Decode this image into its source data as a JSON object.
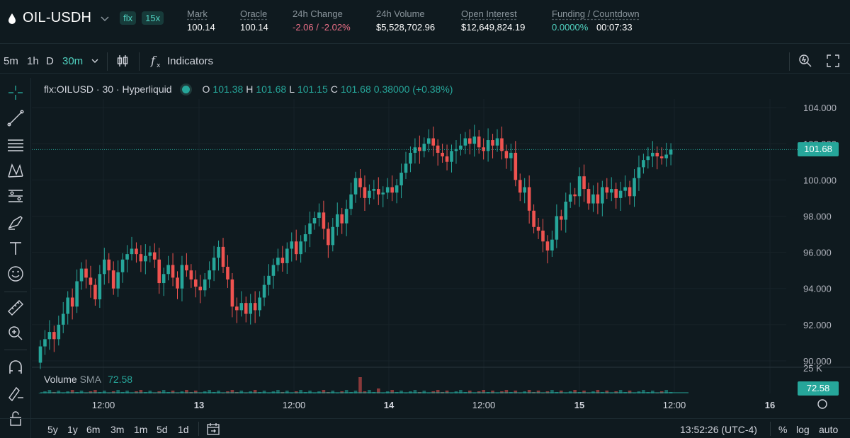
{
  "header": {
    "pair": "OIL-USDH",
    "tags": [
      "flx",
      "15x"
    ],
    "stats": [
      {
        "label": "Mark",
        "value": "100.14",
        "tone": "white"
      },
      {
        "label": "Oracle",
        "value": "100.14",
        "tone": "white"
      },
      {
        "label": "24h Change",
        "value": "-2.06 / -2.02%",
        "tone": "red"
      },
      {
        "label": "24h Volume",
        "value": "$5,528,702.96",
        "tone": "white"
      },
      {
        "label": "Open Interest",
        "value": "$12,649,824.19",
        "tone": "white"
      },
      {
        "label": "Funding / Countdown",
        "value": "0.0000%",
        "value2": "00:07:33",
        "tone": "green"
      }
    ]
  },
  "toolbar": {
    "timeframes": [
      "5m",
      "1h",
      "D",
      "30m"
    ],
    "active_timeframe": "30m",
    "indicators_label": "Indicators"
  },
  "legend": {
    "symbol": "flx:OILUSD · 30 · Hyperliquid",
    "o_label": "O",
    "o": "101.38",
    "h_label": "H",
    "h": "101.68",
    "l_label": "L",
    "l": "101.15",
    "c_label": "C",
    "c": "101.68",
    "change": "0.38000 (+0.38%)"
  },
  "volume_legend": {
    "label": "Volume",
    "sma_label": "SMA",
    "sma": "72.58",
    "tag": "72.58"
  },
  "last_price_tag": "101.68",
  "price_axis": [
    "104.000",
    "102.000",
    "100.000",
    "98.000",
    "96.000",
    "94.000",
    "92.000",
    "90.000"
  ],
  "volume_axis_label": "25 K",
  "time_axis": [
    "12:00",
    "13",
    "12:00",
    "14",
    "12:00",
    "15",
    "12:00",
    "16"
  ],
  "bottombar": {
    "ranges": [
      "5y",
      "1y",
      "6m",
      "3m",
      "1m",
      "5d",
      "1d"
    ],
    "clock": "13:52:26 (UTC-4)",
    "percent": "%",
    "log": "log",
    "auto": "auto"
  },
  "colors": {
    "up": "#26a69a",
    "down": "#ef5350",
    "accent": "#50d2c1",
    "bg": "#0f1a1f"
  },
  "chart_data": {
    "type": "candlestick",
    "symbol": "flx:OILUSD",
    "interval": "30",
    "ylim": [
      90,
      104
    ],
    "closes": [
      90.8,
      91.2,
      91.6,
      91.2,
      92.0,
      92.6,
      93.5,
      93.0,
      94.4,
      95.1,
      94.6,
      94.2,
      93.4,
      94.8,
      95.6,
      95.0,
      94.0,
      94.9,
      95.6,
      95.9,
      96.2,
      95.9,
      95.5,
      95.8,
      96.0,
      95.6,
      94.3,
      94.8,
      95.3,
      94.6,
      94.0,
      95.3,
      95.0,
      94.5,
      94.1,
      93.9,
      94.5,
      95.0,
      95.7,
      96.3,
      95.2,
      94.5,
      93.0,
      92.8,
      93.2,
      92.6,
      93.2,
      92.8,
      93.5,
      94.2,
      94.7,
      95.3,
      95.7,
      95.4,
      96.2,
      96.6,
      95.9,
      96.6,
      97.0,
      97.6,
      97.9,
      98.2,
      97.3,
      96.4,
      97.4,
      98.1,
      97.6,
      98.4,
      99.2,
      100.1,
      99.6,
      99.0,
      99.4,
      99.5,
      99.2,
      99.3,
      99.6,
      99.3,
      99.7,
      100.4,
      100.9,
      101.5,
      101.8,
      101.6,
      102.0,
      102.3,
      101.9,
      101.5,
      101.3,
      101.0,
      101.6,
      101.7,
      101.9,
      102.3,
      102.0,
      102.4,
      101.8,
      101.6,
      102.2,
      101.9,
      102.3,
      101.6,
      101.2,
      101.5,
      100.0,
      99.3,
      99.6,
      98.3,
      97.4,
      97.2,
      96.6,
      96.1,
      96.7,
      98.0,
      97.8,
      98.8,
      99.2,
      99.1,
      100.2,
      99.5,
      98.7,
      99.2,
      98.7,
      99.6,
      99.3,
      99.5,
      99.0,
      99.4,
      99.6,
      99.1,
      100.1,
      100.7,
      101.1,
      101.3,
      101.5,
      101.3,
      101.2,
      101.4,
      101.68
    ]
  }
}
